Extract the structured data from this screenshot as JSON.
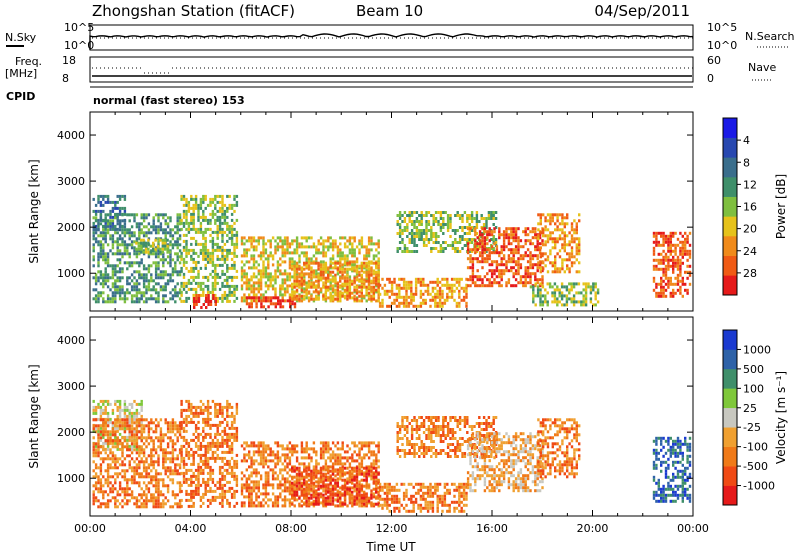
{
  "header": {
    "station": "Zhongshan Station (fitACF)",
    "beam": "Beam 10",
    "date": "04/Sep/2011"
  },
  "panels": {
    "nsky_label": "N.Sky",
    "nsky_ticks": [
      "10^5",
      "10^0"
    ],
    "nsearch_label": "N.Search",
    "nsearch_ticks": [
      "10^5",
      "10^0"
    ],
    "freq_label": "Freq.",
    "freq_unit": "[MHz]",
    "freq_ticks": [
      "18",
      "8"
    ],
    "nave_label": "Nave",
    "nave_ticks": [
      "60",
      "0"
    ],
    "cpid_label": "CPID",
    "cpid_value": "normal (fast stereo) 153"
  },
  "chart_data": [
    {
      "type": "heatmap",
      "name": "power",
      "ylabel": "Slant Range [km]",
      "xlabel": "Time UT",
      "xlim": [
        0,
        24
      ],
      "ylim": [
        180,
        4500
      ],
      "yticks": [
        "1000",
        "2000",
        "3000",
        "4000"
      ],
      "xtick_labels": [
        "00:00",
        "04:00",
        "08:00",
        "12:00",
        "16:00",
        "20:00",
        "00:00"
      ],
      "colorbar": {
        "label": "Power [dB]",
        "tick_labels": [
          "4",
          "8",
          "12",
          "16",
          "20",
          "24",
          "28"
        ],
        "colors": [
          "#1a1ae6",
          "#2848b0",
          "#3a6e8c",
          "#3f8f6a",
          "#7fbf3f",
          "#e6c21a",
          "#f08a1a",
          "#f05a14",
          "#e61a1a"
        ]
      },
      "regions": [
        {
          "t0": 0.1,
          "t1": 1.4,
          "r0": 1950,
          "r1": 2700,
          "level": 2
        },
        {
          "t0": 0.1,
          "t1": 3.6,
          "r0": 400,
          "r1": 2300,
          "level": 3
        },
        {
          "t0": 1.8,
          "t1": 3.2,
          "r0": 1450,
          "r1": 1750,
          "level": 4
        },
        {
          "t0": 3.6,
          "t1": 5.8,
          "r0": 400,
          "r1": 2700,
          "level": 4
        },
        {
          "t0": 4.1,
          "t1": 5.0,
          "r0": 250,
          "r1": 550,
          "level": 8
        },
        {
          "t0": 6.0,
          "t1": 11.5,
          "r0": 400,
          "r1": 1800,
          "level": 5
        },
        {
          "t0": 6.2,
          "t1": 8.3,
          "r0": 250,
          "r1": 500,
          "level": 8
        },
        {
          "t0": 8.0,
          "t1": 11.5,
          "r0": 450,
          "r1": 1250,
          "level": 6
        },
        {
          "t0": 11.5,
          "t1": 15.0,
          "r0": 250,
          "r1": 900,
          "level": 6
        },
        {
          "t0": 12.2,
          "t1": 16.2,
          "r0": 1450,
          "r1": 2350,
          "level": 4
        },
        {
          "t0": 15.0,
          "t1": 18.0,
          "r0": 700,
          "r1": 2000,
          "level": 7
        },
        {
          "t0": 17.8,
          "t1": 19.5,
          "r0": 1000,
          "r1": 2300,
          "level": 6
        },
        {
          "t0": 17.5,
          "t1": 20.2,
          "r0": 300,
          "r1": 800,
          "level": 4
        },
        {
          "t0": 22.4,
          "t1": 23.9,
          "r0": 500,
          "r1": 1900,
          "level": 7
        }
      ]
    },
    {
      "type": "heatmap",
      "name": "velocity",
      "ylabel": "Slant Range [km]",
      "xlabel": "Time UT",
      "xlim": [
        0,
        24
      ],
      "ylim": [
        180,
        4500
      ],
      "yticks": [
        "1000",
        "2000",
        "3000",
        "4000"
      ],
      "xtick_labels": [
        "00:00",
        "04:00",
        "08:00",
        "12:00",
        "16:00",
        "20:00",
        "00:00"
      ],
      "colorbar": {
        "label": "Velocity [m s⁻¹]",
        "tick_labels": [
          "1000",
          "500",
          "100",
          "25",
          "-25",
          "-100",
          "-500",
          "-1000"
        ],
        "colors": [
          "#1a3ad0",
          "#2e62a8",
          "#3f8f6a",
          "#7fc83a",
          "#c8c8c0",
          "#f0a030",
          "#f07a18",
          "#f04a14",
          "#e61a1a"
        ]
      },
      "regions": [
        {
          "t0": 0.1,
          "t1": 2.1,
          "r0": 1600,
          "r1": 2700,
          "level": 4
        },
        {
          "t0": 0.1,
          "t1": 3.6,
          "r0": 400,
          "r1": 2300,
          "level": 6
        },
        {
          "t0": 3.6,
          "t1": 5.8,
          "r0": 400,
          "r1": 2700,
          "level": 6
        },
        {
          "t0": 6.0,
          "t1": 11.5,
          "r0": 400,
          "r1": 1800,
          "level": 6
        },
        {
          "t0": 8.0,
          "t1": 11.5,
          "r0": 450,
          "r1": 1250,
          "level": 7
        },
        {
          "t0": 11.5,
          "t1": 15.0,
          "r0": 250,
          "r1": 900,
          "level": 6
        },
        {
          "t0": 12.2,
          "t1": 16.2,
          "r0": 1450,
          "r1": 2350,
          "level": 6
        },
        {
          "t0": 15.0,
          "t1": 18.0,
          "r0": 700,
          "r1": 2000,
          "level": 5
        },
        {
          "t0": 17.8,
          "t1": 19.5,
          "r0": 1000,
          "r1": 2300,
          "level": 6
        },
        {
          "t0": 22.4,
          "t1": 23.9,
          "r0": 500,
          "r1": 1900,
          "level": 1
        }
      ]
    }
  ]
}
